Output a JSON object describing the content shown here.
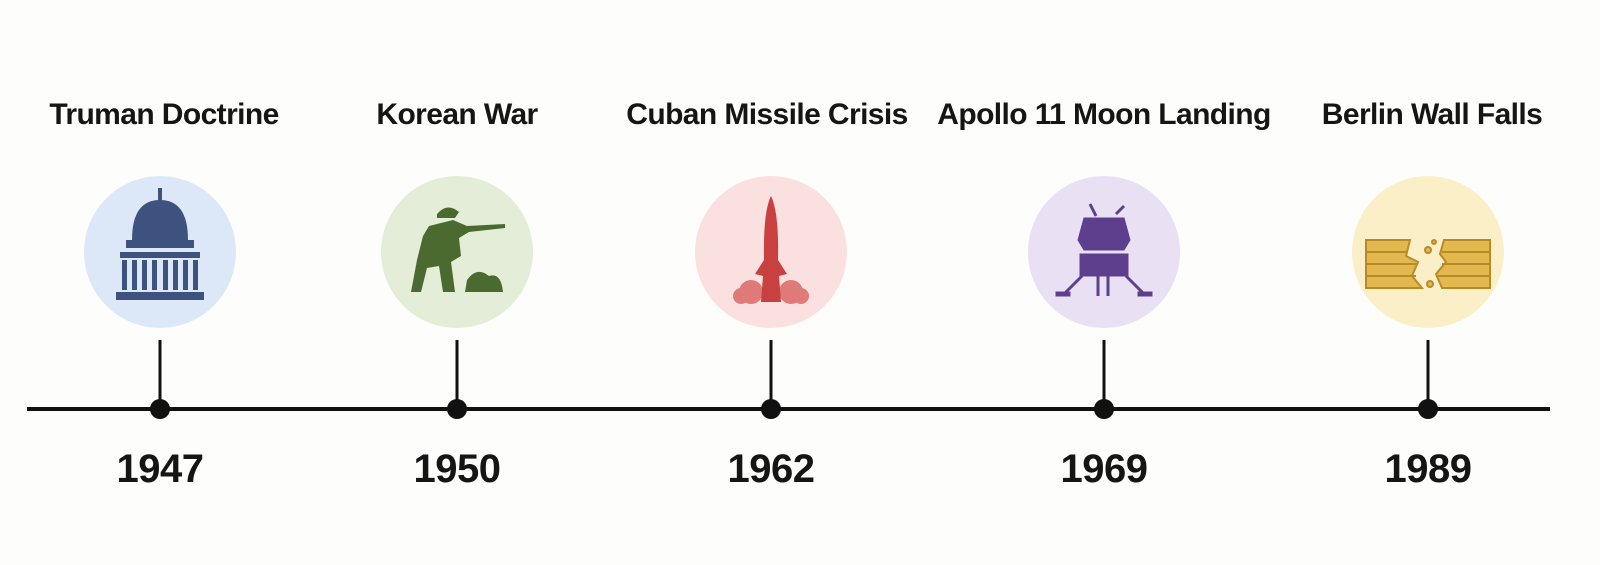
{
  "events": [
    {
      "title": "Truman Doctrine",
      "year": "1947"
    },
    {
      "title": "Korean War",
      "year": "1950"
    },
    {
      "title": "Cuban Missile Crisis",
      "year": "1962"
    },
    {
      "title": "Apollo 11 Moon Landing",
      "year": "1969"
    },
    {
      "title": "Berlin Wall Falls",
      "year": "1989"
    }
  ]
}
